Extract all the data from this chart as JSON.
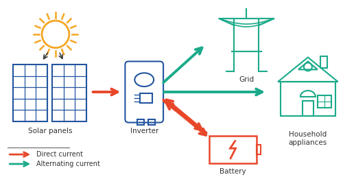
{
  "bg_color": "#ffffff",
  "solar_color": "#2255a0",
  "teal_color": "#1aaa8a",
  "red_color": "#e8472a",
  "orange_color": "#f5a623",
  "black_color": "#333333",
  "legend_line_color": "#666666",
  "labels": {
    "solar_panels": "Solar panels",
    "inverter": "Inverter",
    "grid": "Grid",
    "household": "Household\nappliances",
    "battery": "Battery",
    "direct": "Direct current",
    "alternating": "Alternating current"
  }
}
